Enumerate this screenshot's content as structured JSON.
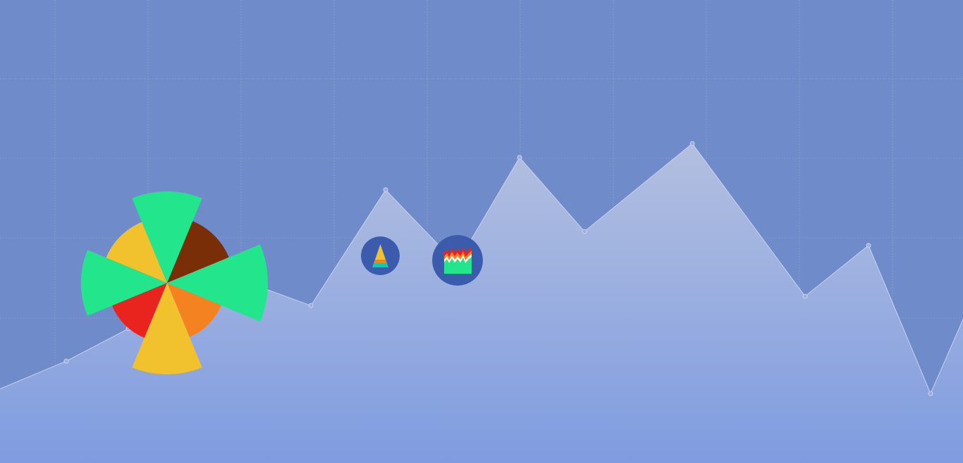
{
  "background": {
    "color": "#6f8bca",
    "grid_color": "#9aa8c8",
    "area_fill_top": "#b3bfe0",
    "area_fill_bottom": "#7f9ce0",
    "line_color": "#c9d2ec",
    "area_points": [
      {
        "x": 0,
        "y": 0.16
      },
      {
        "x": 1,
        "y": 0.22
      },
      {
        "x": 2,
        "y": 0.29
      },
      {
        "x": 3,
        "y": 0.43
      },
      {
        "x": 4,
        "y": 0.34
      },
      {
        "x": 5,
        "y": 0.59
      },
      {
        "x": 6,
        "y": 0.43
      },
      {
        "x": 7,
        "y": 0.66
      },
      {
        "x": 8,
        "y": 0.5
      },
      {
        "x": 9,
        "y": 0.69
      },
      {
        "x": 10,
        "y": 0.36
      },
      {
        "x": 11,
        "y": 0.47
      },
      {
        "x": 12,
        "y": 0.15
      },
      {
        "x": 13,
        "y": 0.31
      },
      {
        "x": 14,
        "y": 0.24
      }
    ]
  },
  "logo": {
    "name": "rose-chart-logo",
    "petals": [
      {
        "color": "#f2c12e",
        "radius": 0.72
      },
      {
        "color": "#22e58c",
        "radius": 1.0
      },
      {
        "color": "#7a2e08",
        "radius": 0.73
      },
      {
        "color": "#22e58c",
        "radius": 1.1
      },
      {
        "color": "#f58220",
        "radius": 0.64
      },
      {
        "color": "#f2c12e",
        "radius": 1.0
      },
      {
        "color": "#e9231d",
        "radius": 0.65
      },
      {
        "color": "#22e58c",
        "radius": 0.94
      }
    ]
  },
  "icons": [
    {
      "name": "pyramid-chart-icon",
      "interactable": true
    },
    {
      "name": "area-chart-icon",
      "interactable": true
    }
  ],
  "icon_colors": {
    "badge": "#3b5cad",
    "yellow": "#f2c12e",
    "orange": "#f58220",
    "green": "#22e58c",
    "teal": "#14c9a6",
    "red": "#e9231d",
    "white": "#ffffff"
  }
}
